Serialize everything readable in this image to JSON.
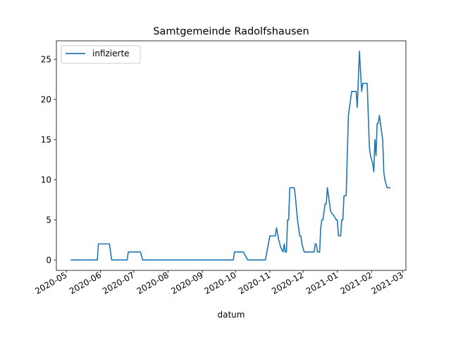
{
  "chart_data": {
    "type": "line",
    "title": "Samtgemeinde Radolfshausen",
    "xlabel": "datum",
    "ylabel": "",
    "ylim": [
      -1.3,
      27.3
    ],
    "xlim": [
      "2020-04-22",
      "2021-03-04"
    ],
    "yticks": [
      0,
      5,
      10,
      15,
      20,
      25
    ],
    "xticks": [
      {
        "date": "2020-05-01",
        "label": "2020-05"
      },
      {
        "date": "2020-06-01",
        "label": "2020-06"
      },
      {
        "date": "2020-07-01",
        "label": "2020-07"
      },
      {
        "date": "2020-08-01",
        "label": "2020-08"
      },
      {
        "date": "2020-09-01",
        "label": "2020-09"
      },
      {
        "date": "2020-10-01",
        "label": "2020-10"
      },
      {
        "date": "2020-11-01",
        "label": "2020-11"
      },
      {
        "date": "2020-12-01",
        "label": "2020-12"
      },
      {
        "date": "2021-01-01",
        "label": "2021-01"
      },
      {
        "date": "2021-02-01",
        "label": "2021-02"
      },
      {
        "date": "2021-03-01",
        "label": "2021-03"
      }
    ],
    "legend": {
      "position": "top-left"
    },
    "grid": false,
    "series": [
      {
        "name": "infizierte",
        "color": "#1f77b4",
        "points": [
          [
            "2020-05-05",
            0
          ],
          [
            "2020-05-29",
            0
          ],
          [
            "2020-05-30",
            2
          ],
          [
            "2020-06-09",
            2
          ],
          [
            "2020-06-11",
            0
          ],
          [
            "2020-06-25",
            0
          ],
          [
            "2020-06-26",
            1
          ],
          [
            "2020-07-07",
            1
          ],
          [
            "2020-07-09",
            0
          ],
          [
            "2020-09-29",
            0
          ],
          [
            "2020-09-30",
            1
          ],
          [
            "2020-10-08",
            1
          ],
          [
            "2020-10-12",
            0
          ],
          [
            "2020-10-28",
            0
          ],
          [
            "2020-11-01",
            3
          ],
          [
            "2020-11-06",
            3
          ],
          [
            "2020-11-07",
            4
          ],
          [
            "2020-11-09",
            2.5
          ],
          [
            "2020-11-11",
            1.5
          ],
          [
            "2020-11-13",
            1
          ],
          [
            "2020-11-14",
            2
          ],
          [
            "2020-11-15",
            1
          ],
          [
            "2020-11-16",
            1
          ],
          [
            "2020-11-17",
            5
          ],
          [
            "2020-11-18",
            5
          ],
          [
            "2020-11-19",
            9
          ],
          [
            "2020-11-23",
            9
          ],
          [
            "2020-11-24",
            8
          ],
          [
            "2020-11-26",
            5
          ],
          [
            "2020-11-28",
            3
          ],
          [
            "2020-11-29",
            3
          ],
          [
            "2020-11-30",
            2
          ],
          [
            "2020-12-02",
            1
          ],
          [
            "2020-12-11",
            1
          ],
          [
            "2020-12-12",
            2
          ],
          [
            "2020-12-13",
            2
          ],
          [
            "2020-12-14",
            1
          ],
          [
            "2020-12-16",
            1
          ],
          [
            "2020-12-17",
            4
          ],
          [
            "2020-12-18",
            5
          ],
          [
            "2020-12-19",
            5
          ],
          [
            "2020-12-21",
            7
          ],
          [
            "2020-12-22",
            7
          ],
          [
            "2020-12-23",
            9
          ],
          [
            "2020-12-25",
            7
          ],
          [
            "2020-12-26",
            6
          ],
          [
            "2020-12-29",
            5.5
          ],
          [
            "2020-12-31",
            5
          ],
          [
            "2021-01-01",
            5
          ],
          [
            "2021-01-02",
            3
          ],
          [
            "2021-01-04",
            3
          ],
          [
            "2021-01-05",
            5
          ],
          [
            "2021-01-06",
            5
          ],
          [
            "2021-01-07",
            8
          ],
          [
            "2021-01-09",
            8
          ],
          [
            "2021-01-11",
            18
          ],
          [
            "2021-01-14",
            21
          ],
          [
            "2021-01-18",
            21
          ],
          [
            "2021-01-19",
            19
          ],
          [
            "2021-01-21",
            26
          ],
          [
            "2021-01-23",
            21
          ],
          [
            "2021-01-24",
            22
          ],
          [
            "2021-01-28",
            22
          ],
          [
            "2021-01-30",
            14
          ],
          [
            "2021-01-31",
            13
          ],
          [
            "2021-02-02",
            12
          ],
          [
            "2021-02-03",
            11
          ],
          [
            "2021-02-04",
            15
          ],
          [
            "2021-02-05",
            13
          ],
          [
            "2021-02-06",
            17
          ],
          [
            "2021-02-07",
            17
          ],
          [
            "2021-02-08",
            18
          ],
          [
            "2021-02-09",
            17
          ],
          [
            "2021-02-11",
            15
          ],
          [
            "2021-02-12",
            11
          ],
          [
            "2021-02-13",
            10
          ],
          [
            "2021-02-15",
            9
          ],
          [
            "2021-02-18",
            9
          ]
        ]
      }
    ]
  }
}
